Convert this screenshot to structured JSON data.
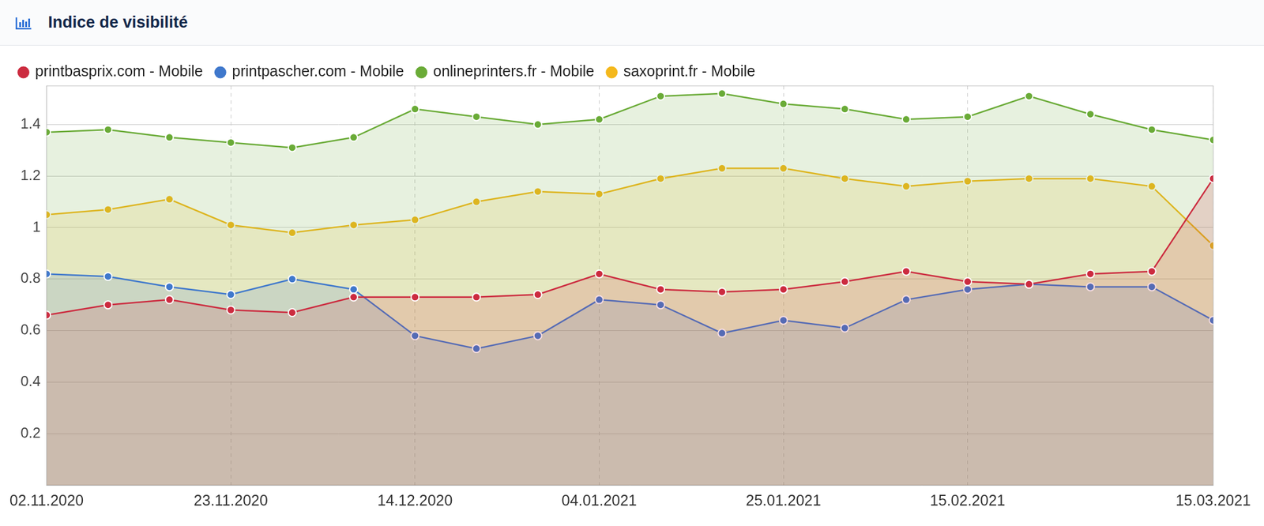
{
  "chart_data": {
    "type": "area",
    "title": "Indice de visibilité",
    "categories": [
      "02.11.2020",
      null,
      null,
      "23.11.2020",
      null,
      null,
      "14.12.2020",
      null,
      null,
      "04.01.2021",
      null,
      null,
      "25.01.2021",
      null,
      null,
      "15.02.2021",
      null,
      null,
      null,
      "15.03.2021"
    ],
    "series": [
      {
        "name": "printbasprix.com - Mobile",
        "color": "#cc2b3f",
        "values": [
          0.66,
          0.7,
          0.72,
          0.68,
          0.67,
          0.73,
          0.73,
          0.73,
          0.74,
          0.82,
          0.76,
          0.75,
          0.76,
          0.79,
          0.83,
          0.79,
          0.78,
          0.82,
          0.83,
          1.19
        ]
      },
      {
        "name": "printpascher.com - Mobile",
        "color": "#3f78cc",
        "values": [
          0.82,
          0.81,
          0.77,
          0.74,
          0.8,
          0.76,
          0.58,
          0.53,
          0.58,
          0.72,
          0.7,
          0.59,
          0.64,
          0.61,
          0.72,
          0.76,
          0.78,
          0.77,
          0.77,
          0.64
        ]
      },
      {
        "name": "onlineprinters.fr - Mobile",
        "color": "#6aab37",
        "values": [
          1.37,
          1.38,
          1.35,
          1.33,
          1.31,
          1.35,
          1.46,
          1.43,
          1.4,
          1.42,
          1.51,
          1.52,
          1.48,
          1.46,
          1.42,
          1.43,
          1.51,
          1.44,
          1.38,
          1.34
        ]
      },
      {
        "name": "saxoprint.fr - Mobile",
        "color": "#f4b81c",
        "values": [
          1.05,
          1.07,
          1.11,
          1.01,
          0.98,
          1.01,
          1.03,
          1.1,
          1.14,
          1.13,
          1.19,
          1.23,
          1.23,
          1.19,
          1.16,
          1.18,
          1.19,
          1.19,
          1.16,
          0.93
        ]
      }
    ],
    "ylim": [
      0,
      1.55
    ],
    "yticks": [
      0.2,
      0.4,
      0.6,
      0.8,
      1,
      1.2,
      1.4
    ],
    "grid": true,
    "legend": "upper left",
    "marker": "circle",
    "line_style": "solid"
  }
}
